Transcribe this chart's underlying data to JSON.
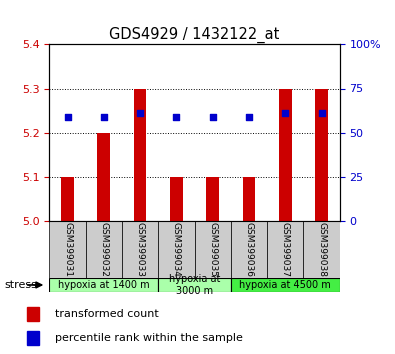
{
  "title": "GDS4929 / 1432122_at",
  "samples": [
    "GSM399031",
    "GSM399032",
    "GSM399033",
    "GSM399034",
    "GSM399035",
    "GSM399036",
    "GSM399037",
    "GSM399038"
  ],
  "bar_bottoms": [
    5.0,
    5.0,
    5.0,
    5.0,
    5.0,
    5.0,
    5.0,
    5.0
  ],
  "bar_tops": [
    5.1,
    5.2,
    5.3,
    5.1,
    5.1,
    5.1,
    5.3,
    5.3
  ],
  "percentile_values": [
    5.235,
    5.235,
    5.245,
    5.235,
    5.235,
    5.235,
    5.245,
    5.245
  ],
  "ylim": [
    5.0,
    5.4
  ],
  "yticks_left": [
    5.0,
    5.1,
    5.2,
    5.3,
    5.4
  ],
  "yticks_right": [
    0,
    25,
    50,
    75,
    100
  ],
  "bar_color": "#cc0000",
  "dot_color": "#0000cc",
  "grid_color": "#000000",
  "background_color": "#ffffff",
  "groups": [
    {
      "label": "hypoxia at 1400 m",
      "start": 0,
      "end": 3,
      "color": "#aaffaa"
    },
    {
      "label": "hypoxia at\n3000 m",
      "start": 3,
      "end": 5,
      "color": "#aaffaa"
    },
    {
      "label": "hypoxia at 4500 m",
      "start": 5,
      "end": 8,
      "color": "#44ee44"
    }
  ],
  "stress_label": "stress",
  "legend_items": [
    {
      "color": "#cc0000",
      "label": "transformed count"
    },
    {
      "color": "#0000cc",
      "label": "percentile rank within the sample"
    }
  ],
  "left_ylabel_color": "#cc0000",
  "right_ylabel_color": "#0000cc",
  "sample_bg_color": "#cccccc",
  "sample_bg_color2": "#dddddd"
}
